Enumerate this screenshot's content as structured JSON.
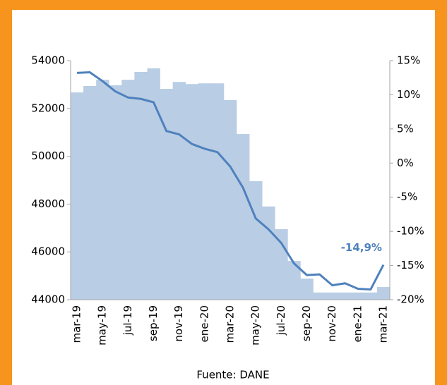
{
  "chart_data": {
    "type": "bar_line",
    "categories": [
      "mar-19",
      null,
      "may-19",
      null,
      "jul-19",
      null,
      "sep-19",
      null,
      "nov-19",
      null,
      "ene-20",
      null,
      "mar-20",
      null,
      "may-20",
      null,
      "jul-20",
      null,
      "sep-20",
      null,
      "nov-20",
      null,
      "ene-21",
      null,
      "mar-21"
    ],
    "series": [
      {
        "color": "#b9cde5",
        "values": [
          52670,
          52940,
          53200,
          52970,
          53200,
          53530,
          53680,
          52820,
          53110,
          53020,
          53050,
          53050,
          52350,
          50930,
          48960,
          47900,
          46950,
          45620,
          44880,
          44300,
          44300,
          44300,
          44300,
          44300,
          44530
        ]
      },
      {
        "color": "#4f81bd",
        "axis": "y2",
        "values": [
          13.2,
          13.3,
          12.0,
          10.5,
          9.6,
          9.4,
          8.9,
          4.7,
          4.2,
          2.8,
          2.1,
          1.6,
          -0.5,
          -3.6,
          -8.1,
          -9.7,
          -11.7,
          -14.7,
          -16.4,
          -16.3,
          -17.9,
          -17.6,
          -18.4,
          -18.5,
          -14.9
        ]
      }
    ],
    "annotation": "-14,9%",
    "ylim": [
      44000,
      54000
    ],
    "yticks": [
      44000,
      46000,
      48000,
      50000,
      52000,
      54000
    ],
    "y2lim": [
      -20,
      15
    ],
    "y2ticks": [
      {
        "value": -20,
        "label": "-20%"
      },
      {
        "value": -15,
        "label": "-15%"
      },
      {
        "value": -10,
        "label": "-10%"
      },
      {
        "value": -5,
        "label": "-5%"
      },
      {
        "value": 0,
        "label": "0%"
      },
      {
        "value": 5,
        "label": "5%"
      },
      {
        "value": 10,
        "label": "10%"
      },
      {
        "value": 15,
        "label": "15%"
      }
    ],
    "source": "Fuente: DANE"
  }
}
